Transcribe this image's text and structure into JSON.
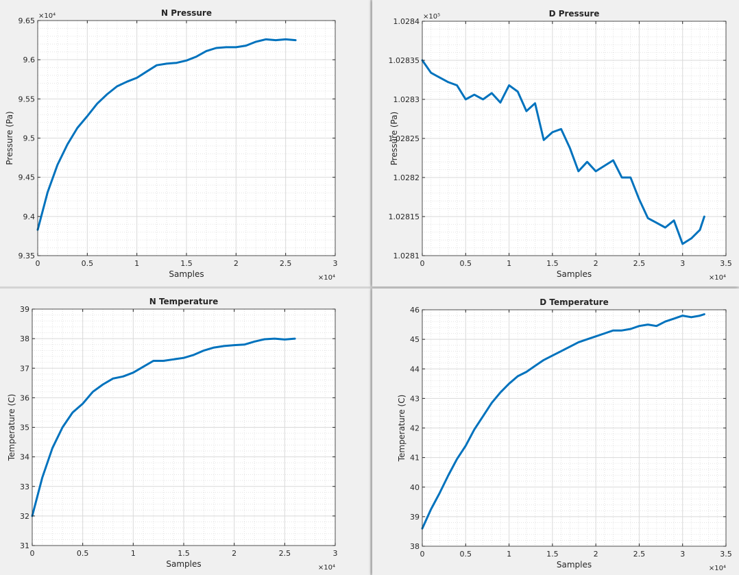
{
  "chart_data": [
    {
      "type": "line",
      "title": "N Pressure",
      "xlabel": "Samples",
      "ylabel": "Pressure (Pa)",
      "x_exponent": "×10⁴",
      "y_exponent": "×10⁴",
      "xlim": [
        0,
        3
      ],
      "ylim": [
        9.35,
        9.65
      ],
      "xticks": [
        "0",
        "0.5",
        "1",
        "1.5",
        "2",
        "2.5",
        "3"
      ],
      "yticks": [
        "9.35",
        "9.4",
        "9.45",
        "9.5",
        "9.55",
        "9.6",
        "9.65"
      ],
      "grid": true,
      "color": "#0072BD",
      "series": [
        {
          "x": [
            0,
            0.1,
            0.2,
            0.3,
            0.4,
            0.5,
            0.6,
            0.7,
            0.8,
            0.9,
            1.0,
            1.1,
            1.2,
            1.3,
            1.4,
            1.5,
            1.6,
            1.7,
            1.8,
            1.9,
            2.0,
            2.1,
            2.2,
            2.3,
            2.4,
            2.5,
            2.6
          ],
          "y": [
            9.383,
            9.431,
            9.466,
            9.492,
            9.513,
            9.528,
            9.544,
            9.556,
            9.566,
            9.572,
            9.577,
            9.585,
            9.593,
            9.595,
            9.596,
            9.599,
            9.604,
            9.611,
            9.615,
            9.616,
            9.616,
            9.618,
            9.623,
            9.626,
            9.625,
            9.626,
            9.625
          ]
        }
      ]
    },
    {
      "type": "line",
      "title": "D Pressure",
      "xlabel": "Samples",
      "ylabel": "Pressure (Pa)",
      "x_exponent": "×10⁴",
      "y_exponent": "×10⁵",
      "xlim": [
        0,
        3.5
      ],
      "ylim": [
        1.0281,
        1.0284
      ],
      "xticks": [
        "0",
        "0.5",
        "1",
        "1.5",
        "2",
        "2.5",
        "3",
        "3.5"
      ],
      "yticks": [
        "1.0281",
        "1.02815",
        "1.0282",
        "1.02825",
        "1.0283",
        "1.02835",
        "1.0284"
      ],
      "grid": true,
      "color": "#0072BD",
      "series": [
        {
          "x": [
            0,
            0.1,
            0.2,
            0.3,
            0.4,
            0.5,
            0.6,
            0.7,
            0.8,
            0.9,
            1.0,
            1.1,
            1.2,
            1.3,
            1.4,
            1.5,
            1.6,
            1.7,
            1.8,
            1.9,
            2.0,
            2.1,
            2.2,
            2.3,
            2.4,
            2.5,
            2.6,
            2.7,
            2.8,
            2.9,
            3.0,
            3.1,
            3.2,
            3.25
          ],
          "y": [
            1.02835,
            1.028334,
            1.028328,
            1.028322,
            1.028318,
            1.0283,
            1.028306,
            1.0283,
            1.028308,
            1.028296,
            1.028318,
            1.02831,
            1.028285,
            1.028295,
            1.028248,
            1.028258,
            1.028262,
            1.028238,
            1.028208,
            1.02822,
            1.028208,
            1.028215,
            1.028222,
            1.0282,
            1.0282,
            1.028172,
            1.028148,
            1.028142,
            1.028136,
            1.028145,
            1.028115,
            1.028122,
            1.028133,
            1.02815
          ]
        }
      ]
    },
    {
      "type": "line",
      "title": "N Temperature",
      "xlabel": "Samples",
      "ylabel": "Temperature (C)",
      "x_exponent": "×10⁴",
      "xlim": [
        0,
        3
      ],
      "ylim": [
        31,
        39
      ],
      "xticks": [
        "0",
        "0.5",
        "1",
        "1.5",
        "2",
        "2.5",
        "3"
      ],
      "yticks": [
        "31",
        "32",
        "33",
        "34",
        "35",
        "36",
        "37",
        "38",
        "39"
      ],
      "grid": true,
      "color": "#0072BD",
      "series": [
        {
          "x": [
            0,
            0.1,
            0.2,
            0.3,
            0.4,
            0.5,
            0.6,
            0.7,
            0.8,
            0.9,
            1.0,
            1.1,
            1.2,
            1.3,
            1.4,
            1.5,
            1.6,
            1.7,
            1.8,
            1.9,
            2.0,
            2.1,
            2.2,
            2.3,
            2.4,
            2.5,
            2.6
          ],
          "y": [
            32.0,
            33.3,
            34.3,
            35.0,
            35.5,
            35.8,
            36.2,
            36.45,
            36.65,
            36.72,
            36.85,
            37.05,
            37.25,
            37.25,
            37.3,
            37.35,
            37.45,
            37.6,
            37.7,
            37.75,
            37.78,
            37.8,
            37.9,
            37.98,
            38.0,
            37.97,
            38.0
          ]
        }
      ]
    },
    {
      "type": "line",
      "title": "D Temperature",
      "xlabel": "Samples",
      "ylabel": "Temperature (C)",
      "x_exponent": "×10⁴",
      "xlim": [
        0,
        3.5
      ],
      "ylim": [
        38,
        46
      ],
      "xticks": [
        "0",
        "0.5",
        "1",
        "1.5",
        "2",
        "2.5",
        "3",
        "3.5"
      ],
      "yticks": [
        "38",
        "39",
        "40",
        "41",
        "42",
        "43",
        "44",
        "45",
        "46"
      ],
      "grid": true,
      "color": "#0072BD",
      "series": [
        {
          "x": [
            0,
            0.1,
            0.2,
            0.3,
            0.4,
            0.5,
            0.6,
            0.7,
            0.8,
            0.9,
            1.0,
            1.1,
            1.2,
            1.3,
            1.4,
            1.5,
            1.6,
            1.7,
            1.8,
            1.9,
            2.0,
            2.1,
            2.2,
            2.3,
            2.4,
            2.5,
            2.6,
            2.7,
            2.8,
            2.9,
            3.0,
            3.1,
            3.2,
            3.25
          ],
          "y": [
            38.6,
            39.25,
            39.8,
            40.4,
            40.95,
            41.4,
            41.95,
            42.4,
            42.85,
            43.2,
            43.5,
            43.75,
            43.9,
            44.1,
            44.3,
            44.45,
            44.6,
            44.75,
            44.9,
            45.0,
            45.1,
            45.2,
            45.3,
            45.3,
            45.35,
            45.45,
            45.5,
            45.45,
            45.6,
            45.7,
            45.8,
            45.75,
            45.8,
            45.85
          ]
        }
      ]
    }
  ]
}
